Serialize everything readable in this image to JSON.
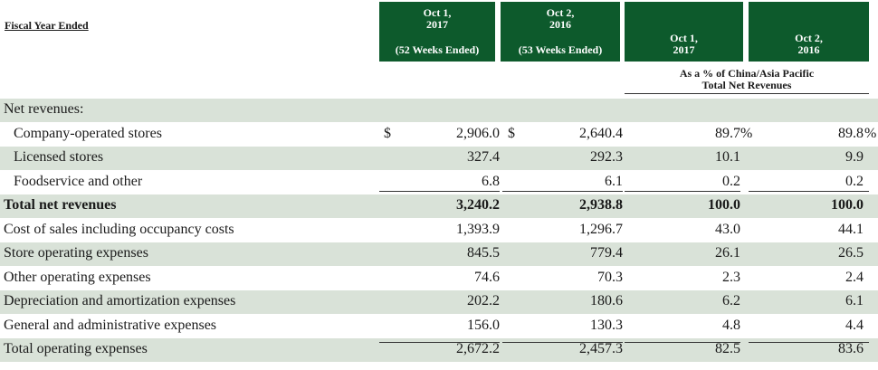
{
  "header": {
    "label": "Fiscal Year Ended",
    "columns": [
      {
        "date": "Oct 1,\n2017",
        "weeks": "(52 Weeks Ended)"
      },
      {
        "date": "Oct 2,\n2016",
        "weeks": "(53 Weeks Ended)"
      },
      {
        "date": "Oct 1,\n2017"
      },
      {
        "date": "Oct 2,\n2016"
      }
    ],
    "pct_caption": "As a % of China/Asia Pacific\nTotal Net Revenues"
  },
  "rows": [
    {
      "label": "Net revenues:",
      "indent": 0,
      "shade": true,
      "bold": false,
      "vals": [
        "",
        "",
        "",
        ""
      ]
    },
    {
      "label": "Company-operated stores",
      "indent": 1,
      "shade": false,
      "bold": false,
      "dollar": "$",
      "vals": [
        "2,906.0",
        "2,640.4",
        "89.7",
        "89.8"
      ],
      "pct_suffix": "%"
    },
    {
      "label": "Licensed stores",
      "indent": 1,
      "shade": true,
      "bold": false,
      "vals": [
        "327.4",
        "292.3",
        "10.1",
        "9.9"
      ]
    },
    {
      "label": "Foodservice and other",
      "indent": 1,
      "shade": false,
      "bold": false,
      "vals": [
        "6.8",
        "6.1",
        "0.2",
        "0.2"
      ]
    },
    {
      "label": "Total net revenues",
      "indent": 0,
      "shade": true,
      "bold": true,
      "vals": [
        "3,240.2",
        "2,938.8",
        "100.0",
        "100.0"
      ]
    },
    {
      "label": "Cost of sales including occupancy costs",
      "indent": 0,
      "shade": false,
      "bold": false,
      "vals": [
        "1,393.9",
        "1,296.7",
        "43.0",
        "44.1"
      ]
    },
    {
      "label": "Store operating expenses",
      "indent": 0,
      "shade": true,
      "bold": false,
      "vals": [
        "845.5",
        "779.4",
        "26.1",
        "26.5"
      ]
    },
    {
      "label": "Other operating expenses",
      "indent": 0,
      "shade": false,
      "bold": false,
      "vals": [
        "74.6",
        "70.3",
        "2.3",
        "2.4"
      ]
    },
    {
      "label": "Depreciation and amortization expenses",
      "indent": 0,
      "shade": true,
      "bold": false,
      "vals": [
        "202.2",
        "180.6",
        "6.2",
        "6.1"
      ]
    },
    {
      "label": "General and administrative expenses",
      "indent": 0,
      "shade": false,
      "bold": false,
      "vals": [
        "156.0",
        "130.3",
        "4.8",
        "4.4"
      ]
    },
    {
      "label": "Total operating expenses",
      "indent": 0,
      "shade": true,
      "bold": false,
      "vals": [
        "2,672.2",
        "2,457.3",
        "82.5",
        "83.6"
      ]
    }
  ]
}
